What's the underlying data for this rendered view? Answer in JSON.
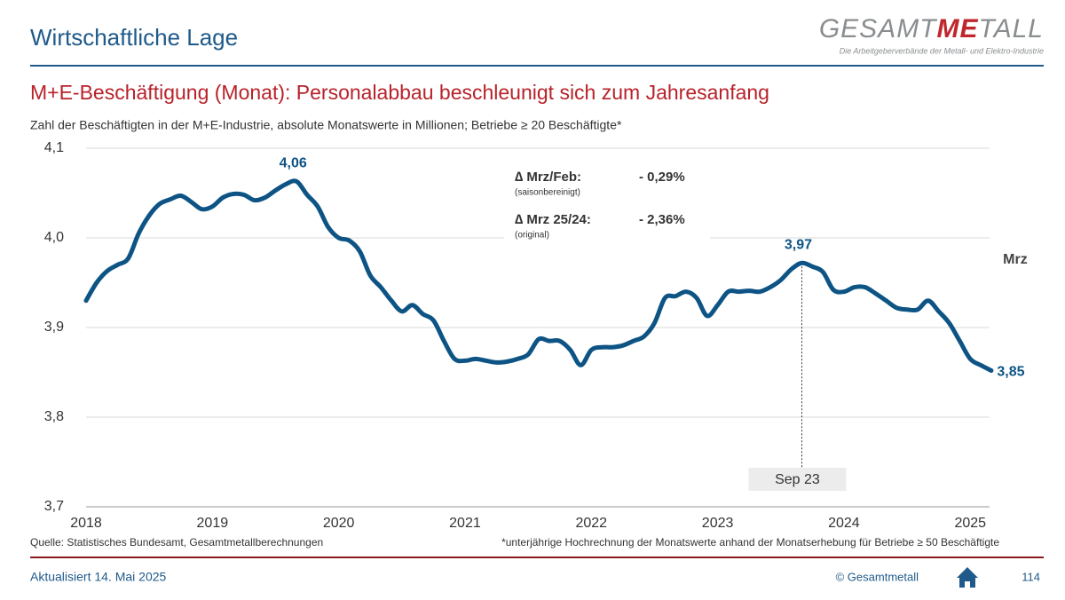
{
  "header": {
    "title": "Wirtschaftliche Lage",
    "logo": [
      "GESAMT",
      "ME",
      "TALL"
    ],
    "logo_subtitle": "Die Arbeitgeberverbände der Metall- und Elektro-Industrie"
  },
  "chart_data": {
    "type": "line",
    "title": "M+E-Beschäftigung (Monat): Personalabbau beschleunigt sich zum Jahresanfang",
    "subtitle": "Zahl der Beschäftigten in der M+E-Industrie, absolute Monatswerte in Millionen; Betriebe ≥ 20 Beschäftigte*",
    "categories": [
      "2018",
      null,
      null,
      null,
      null,
      null,
      null,
      null,
      null,
      null,
      null,
      null,
      "2019",
      null,
      null,
      null,
      null,
      null,
      null,
      null,
      null,
      null,
      null,
      null,
      "2020",
      null,
      null,
      null,
      null,
      null,
      null,
      null,
      null,
      null,
      null,
      null,
      "2021",
      null,
      null,
      null,
      null,
      null,
      null,
      null,
      null,
      null,
      null,
      null,
      "2022",
      null,
      null,
      null,
      null,
      null,
      null,
      null,
      null,
      null,
      null,
      null,
      "2023",
      null,
      null,
      null,
      null,
      null,
      null,
      null,
      null,
      null,
      null,
      null,
      "2024",
      null,
      null,
      null,
      null,
      null,
      null,
      null,
      null,
      null,
      null,
      null,
      "2025",
      null,
      null
    ],
    "series": [
      {
        "name": "Beschäftigte",
        "color": "#0d5485",
        "values": [
          3.93,
          3.95,
          3.963,
          3.97,
          3.977,
          4.005,
          4.025,
          4.038,
          4.043,
          4.047,
          4.04,
          4.032,
          4.035,
          4.045,
          4.049,
          4.048,
          4.042,
          4.045,
          4.053,
          4.06,
          4.063,
          4.048,
          4.035,
          4.012,
          4.0,
          3.997,
          3.985,
          3.958,
          3.945,
          3.93,
          3.918,
          3.925,
          3.915,
          3.908,
          3.885,
          3.865,
          3.863,
          3.865,
          3.863,
          3.861,
          3.862,
          3.865,
          3.87,
          3.887,
          3.885,
          3.885,
          3.875,
          3.858,
          3.875,
          3.878,
          3.878,
          3.88,
          3.885,
          3.89,
          3.905,
          3.933,
          3.935,
          3.94,
          3.933,
          3.913,
          3.925,
          3.94,
          3.94,
          3.941,
          3.94,
          3.945,
          3.953,
          3.965,
          3.972,
          3.968,
          3.962,
          3.942,
          3.94,
          3.945,
          3.945,
          3.938,
          3.93,
          3.922,
          3.92,
          3.92,
          3.93,
          3.918,
          3.905,
          3.885,
          3.865,
          3.858,
          3.852
        ],
        "value_labels": [
          null,
          null,
          null,
          null,
          null,
          null,
          null,
          null,
          null,
          null,
          null,
          null,
          null,
          null,
          null,
          null,
          null,
          null,
          null,
          null,
          "4,06",
          null,
          null,
          null,
          null,
          null,
          null,
          null,
          null,
          null,
          null,
          null,
          null,
          null,
          null,
          null,
          null,
          null,
          null,
          null,
          null,
          null,
          null,
          null,
          null,
          null,
          null,
          null,
          null,
          null,
          null,
          null,
          null,
          null,
          null,
          null,
          null,
          null,
          null,
          null,
          null,
          null,
          null,
          null,
          null,
          null,
          null,
          null,
          "3,97",
          null,
          null,
          null,
          null,
          null,
          null,
          null,
          null,
          null,
          null,
          null,
          null,
          null,
          null,
          null,
          null,
          null,
          "3,85"
        ]
      }
    ],
    "ylim": [
      3.7,
      4.1
    ],
    "yticks": [
      {
        "value": 3.7,
        "label": "3,7"
      },
      {
        "value": 3.8,
        "label": "3,8"
      },
      {
        "value": 3.9,
        "label": "3,9"
      },
      {
        "value": 4.0,
        "label": "4,0"
      },
      {
        "value": 4.1,
        "label": "4,1"
      }
    ],
    "grid": true,
    "last_label": "Mrz",
    "highlight_label": "Sep 23",
    "info": [
      {
        "label": "∆ Mrz/Feb:",
        "note": "(saisonbereinigt)",
        "value": "- 0,29%"
      },
      {
        "label": "∆ Mrz 25/24:",
        "note": "(original)",
        "value": "- 2,36%"
      }
    ],
    "source": "Quelle: Statistisches Bundesamt, Gesamtmetallberechnungen",
    "footnote": "*unterjährige Hochrechnung der Monatswerte anhand der Monatserhebung für Betriebe ≥ 50 Beschäftigte"
  },
  "footer": {
    "updated": "Aktualisiert 14. Mai 2025",
    "copyright": "© Gesamtmetall",
    "page": "114"
  }
}
